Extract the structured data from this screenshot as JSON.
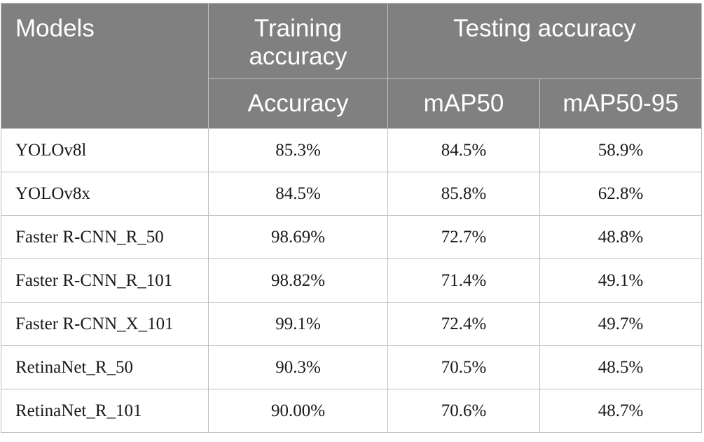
{
  "table": {
    "header": {
      "models": "Models",
      "training_group": "Training accuracy",
      "testing_group": "Testing accuracy",
      "accuracy": "Accuracy",
      "map50": "mAP50",
      "map50_95": "mAP50-95"
    },
    "rows": [
      {
        "model": "YOLOv8l",
        "accuracy": "85.3%",
        "map50": "84.5%",
        "map50_95": "58.9%"
      },
      {
        "model": "YOLOv8x",
        "accuracy": "84.5%",
        "map50": "85.8%",
        "map50_95": "62.8%"
      },
      {
        "model": "Faster R-CNN_R_50",
        "accuracy": "98.69%",
        "map50": "72.7%",
        "map50_95": "48.8%"
      },
      {
        "model": "Faster R-CNN_R_101",
        "accuracy": "98.82%",
        "map50": "71.4%",
        "map50_95": "49.1%"
      },
      {
        "model": "Faster R-CNN_X_101",
        "accuracy": "99.1%",
        "map50": "72.4%",
        "map50_95": "49.7%"
      },
      {
        "model": "RetinaNet_R_50",
        "accuracy": "90.3%",
        "map50": "70.5%",
        "map50_95": "48.5%"
      },
      {
        "model": "RetinaNet_R_101",
        "accuracy": "90.00%",
        "map50": "70.6%",
        "map50_95": "48.7%"
      }
    ]
  }
}
